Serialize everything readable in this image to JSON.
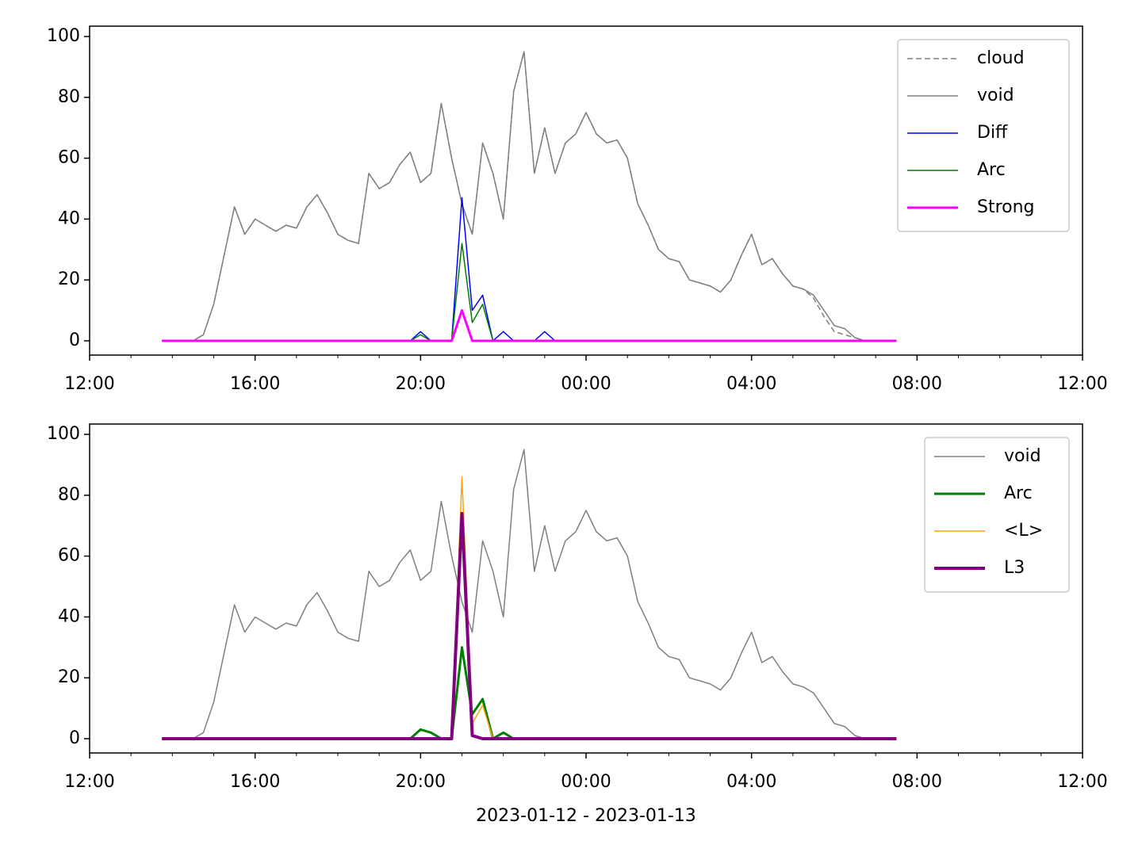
{
  "chart_data": [
    {
      "type": "line",
      "x": [
        13.75,
        14,
        14.25,
        14.5,
        14.75,
        15,
        15.25,
        15.5,
        15.75,
        16,
        16.25,
        16.5,
        16.75,
        17,
        17.25,
        17.5,
        17.75,
        18,
        18.25,
        18.5,
        18.75,
        19,
        19.25,
        19.5,
        19.75,
        20,
        20.25,
        20.5,
        20.75,
        21,
        21.25,
        21.5,
        21.75,
        22,
        22.25,
        22.5,
        22.75,
        23,
        23.25,
        23.5,
        23.75,
        24,
        24.25,
        24.5,
        24.75,
        25,
        25.25,
        25.5,
        25.75,
        26,
        26.25,
        26.5,
        26.75,
        27,
        27.25,
        27.5,
        27.75,
        28,
        28.25,
        28.5,
        28.75,
        29,
        29.25,
        29.5,
        29.75,
        30,
        30.25,
        30.5,
        30.75,
        31,
        31.25,
        31.5
      ],
      "xlim": [
        12,
        36
      ],
      "xticks": [
        {
          "value": 12,
          "label": "12:00"
        },
        {
          "value": 16,
          "label": "16:00"
        },
        {
          "value": 20,
          "label": "20:00"
        },
        {
          "value": 24,
          "label": "00:00"
        },
        {
          "value": 28,
          "label": "04:00"
        },
        {
          "value": 32,
          "label": "08:00"
        },
        {
          "value": 36,
          "label": "12:00"
        }
      ],
      "xminorticks": [
        13,
        14,
        15,
        17,
        18,
        19,
        21,
        22,
        23,
        25,
        26,
        27,
        29,
        30,
        31,
        33,
        34,
        35
      ],
      "ylim": [
        -4.7,
        103.4
      ],
      "yticks": [
        0,
        20,
        40,
        60,
        80,
        100
      ],
      "legend": "upper right",
      "series": [
        {
          "name": "cloud",
          "color": "#808080",
          "dashed": true,
          "linewidth": 1.5,
          "values": [
            0,
            0,
            0,
            0,
            2,
            12,
            28,
            44,
            35,
            40,
            38,
            36,
            38,
            37,
            44,
            48,
            42,
            35,
            33,
            32,
            55,
            50,
            52,
            58,
            62,
            52,
            55,
            78,
            60,
            45,
            35,
            65,
            55,
            40,
            82,
            95,
            55,
            70,
            55,
            65,
            68,
            75,
            68,
            65,
            66,
            60,
            45,
            38,
            30,
            27,
            26,
            20,
            19,
            18,
            16,
            20,
            28,
            35,
            25,
            27,
            22,
            18,
            17,
            14,
            8,
            3,
            2,
            1,
            0,
            0,
            0,
            0
          ]
        },
        {
          "name": "void",
          "color": "#808080",
          "linewidth": 1.5,
          "values": [
            0,
            0,
            0,
            0,
            2,
            12,
            28,
            44,
            35,
            40,
            38,
            36,
            38,
            37,
            44,
            48,
            42,
            35,
            33,
            32,
            55,
            50,
            52,
            58,
            62,
            52,
            55,
            78,
            60,
            45,
            35,
            65,
            55,
            40,
            82,
            95,
            55,
            70,
            55,
            65,
            68,
            75,
            68,
            65,
            66,
            60,
            45,
            38,
            30,
            27,
            26,
            20,
            19,
            18,
            16,
            20,
            28,
            35,
            25,
            27,
            22,
            18,
            17,
            15,
            10,
            5,
            4,
            1,
            0,
            0,
            0,
            0
          ]
        },
        {
          "name": "Diff",
          "color": "#0000ff",
          "linewidth": 1.5,
          "values": [
            0,
            0,
            0,
            0,
            0,
            0,
            0,
            0,
            0,
            0,
            0,
            0,
            0,
            0,
            0,
            0,
            0,
            0,
            0,
            0,
            0,
            0,
            0,
            0,
            0,
            3,
            0,
            0,
            0,
            47,
            10,
            15,
            0,
            3,
            0,
            0,
            0,
            3,
            0,
            0,
            0,
            0,
            0,
            0,
            0,
            0,
            0,
            0,
            0,
            0,
            0,
            0,
            0,
            0,
            0,
            0,
            0,
            0,
            0,
            0,
            0,
            0,
            0,
            0,
            0,
            0,
            0,
            0,
            0,
            0,
            0,
            0
          ]
        },
        {
          "name": "Arc",
          "color": "#008000",
          "linewidth": 1.5,
          "values": [
            0,
            0,
            0,
            0,
            0,
            0,
            0,
            0,
            0,
            0,
            0,
            0,
            0,
            0,
            0,
            0,
            0,
            0,
            0,
            0,
            0,
            0,
            0,
            0,
            0,
            2,
            0,
            0,
            0,
            32,
            6,
            12,
            0,
            0,
            0,
            0,
            0,
            0,
            0,
            0,
            0,
            0,
            0,
            0,
            0,
            0,
            0,
            0,
            0,
            0,
            0,
            0,
            0,
            0,
            0,
            0,
            0,
            0,
            0,
            0,
            0,
            0,
            0,
            0,
            0,
            0,
            0,
            0,
            0,
            0,
            0,
            0
          ]
        },
        {
          "name": "Strong",
          "color": "#ff00ff",
          "linewidth": 3,
          "values": [
            0,
            0,
            0,
            0,
            0,
            0,
            0,
            0,
            0,
            0,
            0,
            0,
            0,
            0,
            0,
            0,
            0,
            0,
            0,
            0,
            0,
            0,
            0,
            0,
            0,
            0,
            0,
            0,
            0,
            10,
            0,
            0,
            0,
            0,
            0,
            0,
            0,
            0,
            0,
            0,
            0,
            0,
            0,
            0,
            0,
            0,
            0,
            0,
            0,
            0,
            0,
            0,
            0,
            0,
            0,
            0,
            0,
            0,
            0,
            0,
            0,
            0,
            0,
            0,
            0,
            0,
            0,
            0,
            0,
            0,
            0,
            0
          ]
        }
      ]
    },
    {
      "type": "line",
      "x_label": "2023-01-12 - 2023-01-13",
      "x": [
        13.75,
        14,
        14.25,
        14.5,
        14.75,
        15,
        15.25,
        15.5,
        15.75,
        16,
        16.25,
        16.5,
        16.75,
        17,
        17.25,
        17.5,
        17.75,
        18,
        18.25,
        18.5,
        18.75,
        19,
        19.25,
        19.5,
        19.75,
        20,
        20.25,
        20.5,
        20.75,
        21,
        21.25,
        21.5,
        21.75,
        22,
        22.25,
        22.5,
        22.75,
        23,
        23.25,
        23.5,
        23.75,
        24,
        24.25,
        24.5,
        24.75,
        25,
        25.25,
        25.5,
        25.75,
        26,
        26.25,
        26.5,
        26.75,
        27,
        27.25,
        27.5,
        27.75,
        28,
        28.25,
        28.5,
        28.75,
        29,
        29.25,
        29.5,
        29.75,
        30,
        30.25,
        30.5,
        30.75,
        31,
        31.25,
        31.5
      ],
      "xlim": [
        12,
        36
      ],
      "xticks": [
        {
          "value": 12,
          "label": "12:00"
        },
        {
          "value": 16,
          "label": "16:00"
        },
        {
          "value": 20,
          "label": "20:00"
        },
        {
          "value": 24,
          "label": "00:00"
        },
        {
          "value": 28,
          "label": "04:00"
        },
        {
          "value": 32,
          "label": "08:00"
        },
        {
          "value": 36,
          "label": "12:00"
        }
      ],
      "xminorticks": [
        13,
        14,
        15,
        17,
        18,
        19,
        21,
        22,
        23,
        25,
        26,
        27,
        29,
        30,
        31,
        33,
        34,
        35
      ],
      "ylim": [
        -4.7,
        103.4
      ],
      "yticks": [
        0,
        20,
        40,
        60,
        80,
        100
      ],
      "legend": "upper right",
      "series": [
        {
          "name": "void",
          "color": "#808080",
          "linewidth": 1.5,
          "values": [
            0,
            0,
            0,
            0,
            2,
            12,
            28,
            44,
            35,
            40,
            38,
            36,
            38,
            37,
            44,
            48,
            42,
            35,
            33,
            32,
            55,
            50,
            52,
            58,
            62,
            52,
            55,
            78,
            60,
            45,
            35,
            65,
            55,
            40,
            82,
            95,
            55,
            70,
            55,
            65,
            68,
            75,
            68,
            65,
            66,
            60,
            45,
            38,
            30,
            27,
            26,
            20,
            19,
            18,
            16,
            20,
            28,
            35,
            25,
            27,
            22,
            18,
            17,
            15,
            10,
            5,
            4,
            1,
            0,
            0,
            0,
            0
          ]
        },
        {
          "name": "Arc",
          "color": "#008000",
          "linewidth": 3,
          "values": [
            0,
            0,
            0,
            0,
            0,
            0,
            0,
            0,
            0,
            0,
            0,
            0,
            0,
            0,
            0,
            0,
            0,
            0,
            0,
            0,
            0,
            0,
            0,
            0,
            0,
            3,
            2,
            0,
            0,
            30,
            8,
            13,
            0,
            2,
            0,
            0,
            0,
            0,
            0,
            0,
            0,
            0,
            0,
            0,
            0,
            0,
            0,
            0,
            0,
            0,
            0,
            0,
            0,
            0,
            0,
            0,
            0,
            0,
            0,
            0,
            0,
            0,
            0,
            0,
            0,
            0,
            0,
            0,
            0,
            0,
            0,
            0
          ]
        },
        {
          "name": "<L>",
          "color": "#ffa500",
          "linewidth": 1.5,
          "values": [
            0,
            0,
            0,
            0,
            0,
            0,
            0,
            0,
            0,
            0,
            0,
            0,
            0,
            0,
            0,
            0,
            0,
            0,
            0,
            0,
            0,
            0,
            0,
            0,
            0,
            0,
            0,
            0,
            0,
            86,
            5,
            11,
            0,
            0,
            0,
            0,
            0,
            0,
            0,
            0,
            0,
            0,
            0,
            0,
            0,
            0,
            0,
            0,
            0,
            0,
            0,
            0,
            0,
            0,
            0,
            0,
            0,
            0,
            0,
            0,
            0,
            0,
            0,
            0,
            0,
            0,
            0,
            0,
            0,
            0,
            0,
            0
          ]
        },
        {
          "name": "L3",
          "color": "#800080",
          "linewidth": 4,
          "values": [
            0,
            0,
            0,
            0,
            0,
            0,
            0,
            0,
            0,
            0,
            0,
            0,
            0,
            0,
            0,
            0,
            0,
            0,
            0,
            0,
            0,
            0,
            0,
            0,
            0,
            0,
            0,
            0,
            0,
            74,
            1,
            0,
            0,
            0,
            0,
            0,
            0,
            0,
            0,
            0,
            0,
            0,
            0,
            0,
            0,
            0,
            0,
            0,
            0,
            0,
            0,
            0,
            0,
            0,
            0,
            0,
            0,
            0,
            0,
            0,
            0,
            0,
            0,
            0,
            0,
            0,
            0,
            0,
            0,
            0,
            0,
            0
          ]
        }
      ]
    }
  ]
}
